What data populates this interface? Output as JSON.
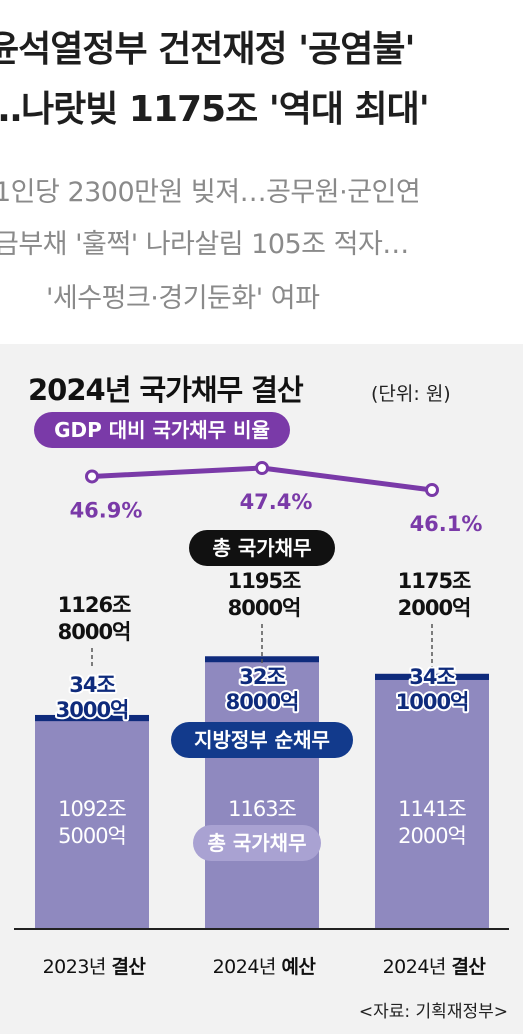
{
  "article": {
    "headline": [
      "윤석열정부 건전재정 '공염불'",
      "…나랏빚 1175조 '역대 최대'"
    ],
    "subheadline": [
      "1인당 2300만원 빚져…공무원·군인연",
      "금부채 '훌쩍' 나라살림 105조 적자…",
      "'세수펑크·경기둔화' 여파"
    ]
  },
  "chart_data": {
    "type": "bar",
    "title": "2024년 국가채무 결산",
    "unit": "(단위: 원)",
    "categories": [
      "2023년 결산",
      "2024년 예산",
      "2024년 결산"
    ],
    "category_parts": [
      [
        "2023년",
        "결산"
      ],
      [
        "2024년",
        "예산"
      ],
      [
        "2024년",
        "결산"
      ]
    ],
    "stacked": true,
    "series": [
      {
        "name": "총 국가채무",
        "values": [
          1092.5,
          1163,
          1141.2
        ],
        "labels": [
          [
            "1092조",
            "5000억"
          ],
          [
            "1163조",
            ""
          ],
          [
            "1141조",
            "2000억"
          ]
        ]
      },
      {
        "name": "지방정부 순채무",
        "values": [
          34.3,
          32.8,
          34.1
        ],
        "labels": [
          [
            "34조",
            "3000억"
          ],
          [
            "32조",
            "8000억"
          ],
          [
            "34조",
            "1000억"
          ]
        ]
      }
    ],
    "totals": {
      "name": "총 국가채무",
      "values": [
        1126.8,
        1195.8,
        1175.2
      ],
      "labels": [
        [
          "1126조",
          "8000억"
        ],
        [
          "1195조",
          "8000억"
        ],
        [
          "1175조",
          "2000억"
        ]
      ]
    },
    "line": {
      "name": "GDP 대비 국가채무 비율",
      "values": [
        46.9,
        47.4,
        46.1
      ],
      "labels": [
        "46.9%",
        "47.4%",
        "46.1%"
      ]
    },
    "source": "<자료: 기획재정부>",
    "colors": {
      "bar": "#8f89bf",
      "bar_cap": "#0f2b7c",
      "line": "#7a3aa8",
      "pill_purple": "#7a3aa8",
      "pill_navy": "#123a8c",
      "pill_black": "#111111",
      "pill_light": "#a9a2d2"
    }
  }
}
